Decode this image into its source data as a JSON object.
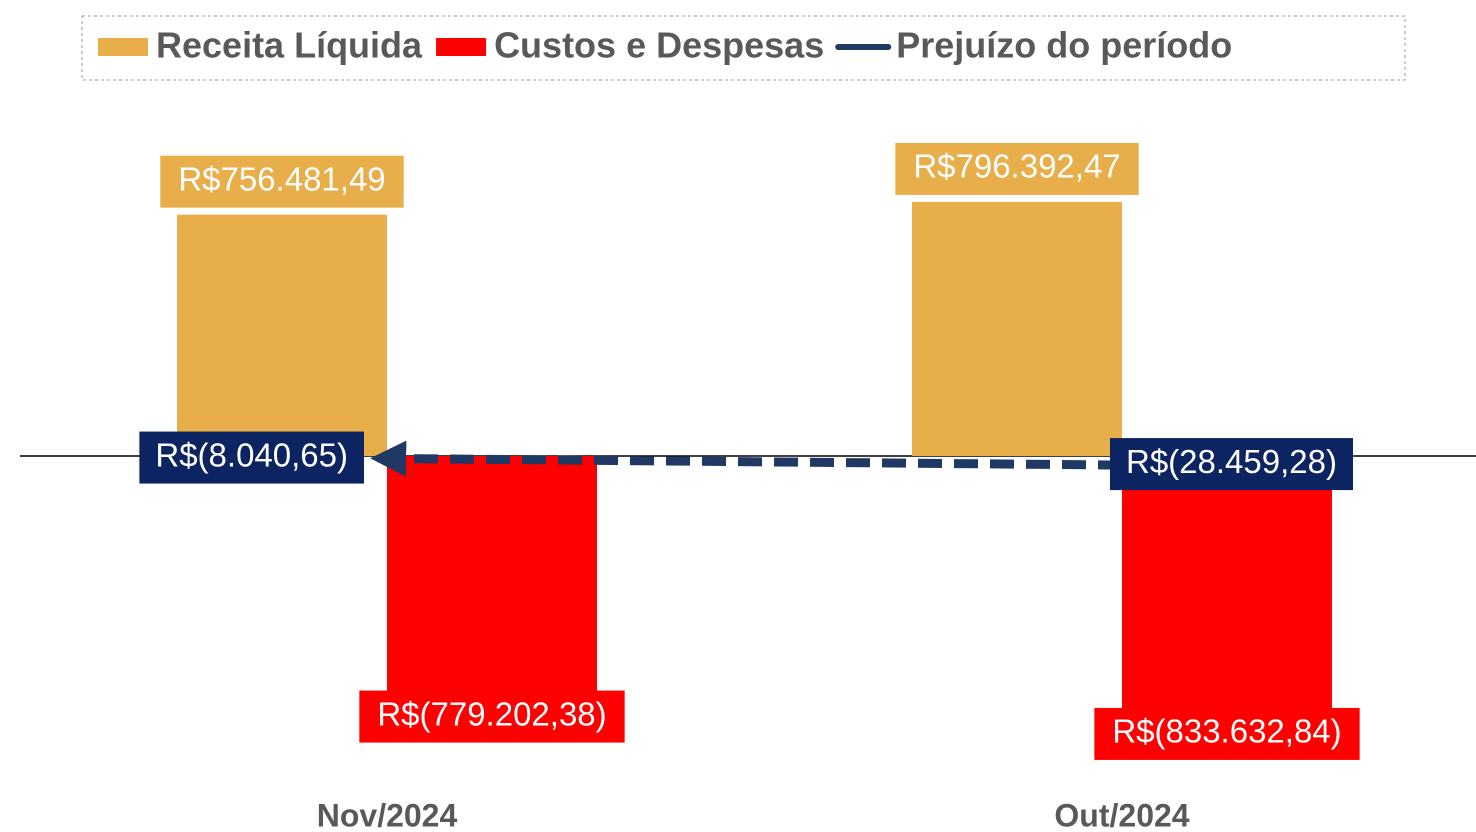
{
  "chart_data": {
    "type": "bar",
    "categories": [
      "Nov/2024",
      "Out/2024"
    ],
    "series": [
      {
        "name": "Receita Líquida",
        "type": "bar",
        "color": "#e8ae4a",
        "values": [
          756481.49,
          796392.47
        ],
        "value_labels": [
          "R$756.481,49",
          "R$796.392,47"
        ]
      },
      {
        "name": "Custos e Despesas",
        "type": "bar",
        "color": "#ff0000",
        "values": [
          -779202.38,
          -833632.84
        ],
        "value_labels": [
          "R$(779.202,38)",
          "R$(833.632,84)"
        ]
      },
      {
        "name": "Prejuízo do período",
        "type": "line",
        "color": "#1f3864",
        "values": [
          -8040.65,
          -28459.28
        ],
        "value_labels": [
          "R$(8.040,65)",
          "R$(28.459,28)"
        ]
      }
    ],
    "ylim": [
      -1000000,
      1000000
    ],
    "legend": "top"
  }
}
